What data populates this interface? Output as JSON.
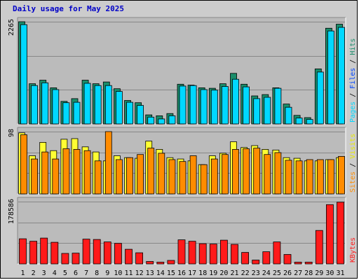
{
  "colors": {
    "background": "#cccccc",
    "panel": "#bbbbbb",
    "grid": "#888888",
    "pages": "#00d8ff",
    "hits": "#1a8d6a",
    "visits": "#ffff33",
    "sites": "#ff8c00",
    "kbytes": "#ff1a1a",
    "weekend_label": "#228b5f",
    "title": "#0000c8"
  },
  "chart_data": {
    "type": "bar",
    "title": "Daily usage for May 2025",
    "categories": [
      "1",
      "2",
      "3",
      "4",
      "5",
      "6",
      "7",
      "8",
      "9",
      "10",
      "11",
      "12",
      "13",
      "14",
      "15",
      "16",
      "17",
      "18",
      "19",
      "20",
      "21",
      "22",
      "23",
      "24",
      "25",
      "26",
      "27",
      "28",
      "29",
      "30",
      "31"
    ],
    "weekend_days": [
      "3",
      "4",
      "10",
      "11",
      "17",
      "18",
      "24",
      "25",
      "31"
    ],
    "panels": [
      {
        "id": "hits-files-pages",
        "max_label": "2265",
        "ymax": 2265,
        "legend": [
          {
            "text": "Pages",
            "color": "#00d8ff"
          },
          {
            "text": " / ",
            "color": "#000000"
          },
          {
            "text": "Files",
            "color": "#0044ff"
          },
          {
            "text": " / ",
            "color": "#000000"
          },
          {
            "text": "Hits",
            "color": "#1a8d6a"
          }
        ],
        "series": [
          {
            "name": "Hits",
            "color": "#1a8d6a",
            "values": [
              2265,
              890,
              970,
              800,
              500,
              560,
              970,
              890,
              930,
              780,
              520,
              470,
              200,
              180,
              230,
              880,
              860,
              800,
              790,
              890,
              1120,
              880,
              620,
              650,
              800,
              440,
              190,
              140,
              1220,
              2120,
              2210
            ]
          },
          {
            "name": "Pages",
            "color": "#00d8ff",
            "values": [
              2200,
              850,
              910,
              760,
              470,
              480,
              900,
              850,
              850,
              720,
              480,
              410,
              150,
              110,
              180,
              840,
              850,
              760,
              750,
              830,
              990,
              820,
              560,
              590,
              790,
              370,
              130,
              100,
              1150,
              2060,
              2140
            ]
          }
        ]
      },
      {
        "id": "visits-sites",
        "max_label": "98",
        "ymax": 98,
        "legend": [
          {
            "text": "Sites",
            "color": "#ff8c00"
          },
          {
            "text": " / ",
            "color": "#000000"
          },
          {
            "text": "Visits",
            "color": "#e8e800"
          }
        ],
        "series": [
          {
            "name": "Visits",
            "color": "#ffff33",
            "values": [
              96,
              60,
              81,
              68,
              86,
              87,
              74,
              66,
              52,
              60,
              57,
              56,
              83,
              70,
              57,
              55,
              52,
              46,
              60,
              64,
              82,
              73,
              76,
              70,
              69,
              57,
              56,
              52,
              52,
              54,
              57
            ]
          },
          {
            "name": "Sites",
            "color": "#ff8c00",
            "values": [
              93,
              55,
              66,
              55,
              71,
              70,
              68,
              52,
              98,
              54,
              57,
              62,
              72,
              64,
              54,
              51,
              60,
              46,
              55,
              62,
              70,
              71,
              72,
              62,
              65,
              53,
              52,
              54,
              54,
              54,
              59
            ]
          }
        ]
      },
      {
        "id": "kbytes",
        "max_label": "178586",
        "ymax": 178586,
        "legend": [
          {
            "text": "KBytes",
            "color": "#ff1a1a"
          }
        ],
        "series": [
          {
            "name": "KBytes",
            "color": "#ff1a1a",
            "values": [
              72000,
              65000,
              74000,
              62000,
              30000,
              31000,
              71000,
              70000,
              63000,
              59000,
              42000,
              32000,
              7000,
              5000,
              10000,
              69000,
              65000,
              58000,
              57000,
              68000,
              56000,
              33000,
              11000,
              35000,
              63000,
              27000,
              5000,
              5000,
              96000,
              170000,
              177000
            ]
          }
        ]
      }
    ]
  }
}
